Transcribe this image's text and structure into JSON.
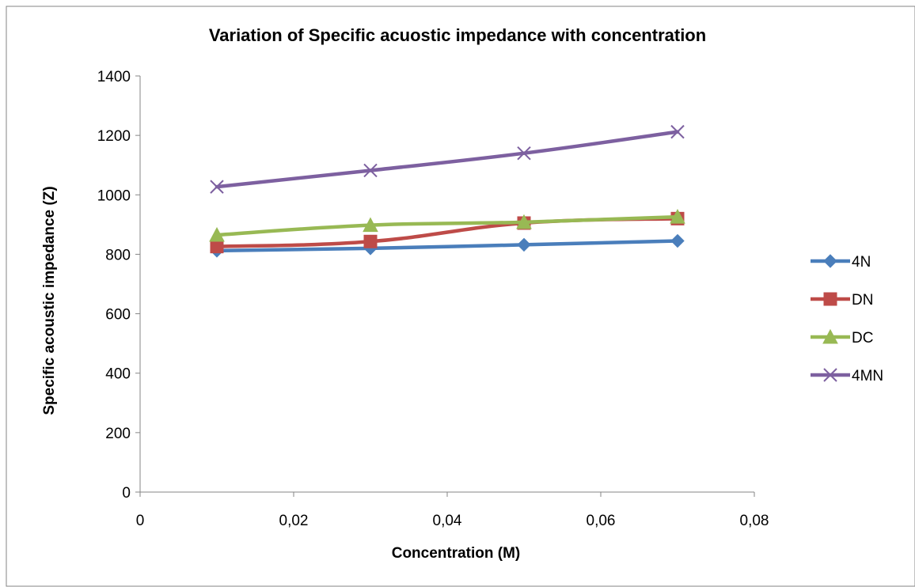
{
  "chart_data": {
    "type": "line",
    "title": "Variation of Specific acuostic impedance with concentration",
    "xlabel": "Concentration (M)",
    "ylabel": "Specific acoustic impedance (Z)",
    "xlim": [
      0,
      0.08
    ],
    "ylim": [
      0,
      1400
    ],
    "x_ticks": [
      0,
      0.02,
      0.04,
      0.06,
      0.08
    ],
    "x_tick_labels": [
      "0",
      "0,02",
      "0,04",
      "0,06",
      "0,08"
    ],
    "y_ticks": [
      0,
      200,
      400,
      600,
      800,
      1000,
      1200,
      1400
    ],
    "y_tick_labels": [
      "0",
      "200",
      "400",
      "600",
      "800",
      "1000",
      "1200",
      "1400"
    ],
    "grid": false,
    "legend_position": "right",
    "x": [
      0.01,
      0.03,
      0.05,
      0.07
    ],
    "series": [
      {
        "name": "4N",
        "values": [
          812,
          820,
          832,
          845
        ],
        "color": "#4a7ebb",
        "marker": "diamond"
      },
      {
        "name": "DN",
        "values": [
          826,
          843,
          905,
          920
        ],
        "color": "#be4b48",
        "marker": "square"
      },
      {
        "name": "DC",
        "values": [
          865,
          898,
          908,
          926
        ],
        "color": "#98b954",
        "marker": "triangle"
      },
      {
        "name": "4MN",
        "values": [
          1027,
          1082,
          1140,
          1212
        ],
        "color": "#7d60a0",
        "marker": "x"
      }
    ]
  }
}
